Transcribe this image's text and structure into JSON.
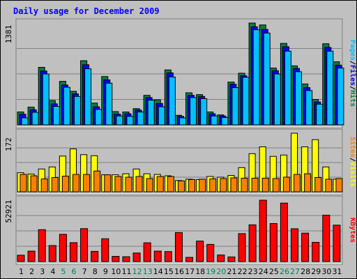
{
  "title": "Daily usage for December 2009",
  "colors": {
    "background": "#c0c0c0",
    "title": "#0000ff",
    "hits": "#008040",
    "files": "#0000ff",
    "pages": "#00c0ff",
    "visits": "#ffff00",
    "sites": "#ff8000",
    "kbytes": "#ff0000",
    "weekend_label": "#00805c",
    "weekday_label": "#000000"
  },
  "chart_data": [
    {
      "type": "bar",
      "name": "hits-files-pages",
      "y_max_label": "1381",
      "ylim": [
        0,
        1381
      ],
      "legend": [
        "Pages",
        "/",
        "Files",
        "/",
        "Hits"
      ],
      "categories": [
        "1",
        "2",
        "3",
        "4",
        "5",
        "6",
        "7",
        "8",
        "9",
        "10",
        "11",
        "12",
        "13",
        "14",
        "15",
        "16",
        "17",
        "18",
        "19",
        "20",
        "21",
        "22",
        "23",
        "24",
        "25",
        "26",
        "27",
        "28",
        "29",
        "30",
        "31"
      ],
      "weekend": [
        false,
        false,
        false,
        false,
        true,
        true,
        false,
        false,
        false,
        false,
        false,
        true,
        true,
        false,
        false,
        false,
        false,
        false,
        true,
        true,
        false,
        false,
        false,
        false,
        false,
        true,
        true,
        false,
        false,
        false,
        false
      ],
      "series": [
        {
          "name": "Hits",
          "values": [
            175,
            240,
            780,
            330,
            590,
            455,
            870,
            295,
            655,
            180,
            175,
            220,
            400,
            340,
            745,
            130,
            435,
            410,
            175,
            135,
            580,
            700,
            1381,
            1355,
            770,
            1105,
            800,
            555,
            345,
            1100,
            855
          ]
        },
        {
          "name": "Files",
          "values": [
            145,
            205,
            730,
            285,
            540,
            420,
            815,
            245,
            610,
            145,
            150,
            200,
            370,
            290,
            705,
            115,
            400,
            385,
            150,
            120,
            550,
            665,
            1330,
            1295,
            735,
            1060,
            765,
            505,
            310,
            1050,
            810
          ]
        },
        {
          "name": "Pages",
          "values": [
            95,
            170,
            690,
            250,
            510,
            385,
            760,
            210,
            565,
            120,
            115,
            175,
            335,
            245,
            650,
            95,
            370,
            355,
            120,
            100,
            505,
            645,
            1290,
            1245,
            690,
            1000,
            720,
            465,
            280,
            1000,
            770
          ]
        }
      ]
    },
    {
      "type": "bar",
      "name": "visits-sites",
      "y_max_label": "172",
      "ylim": [
        0,
        172
      ],
      "legend": [
        "Sites",
        "/",
        "Visits"
      ],
      "categories": [
        "1",
        "2",
        "3",
        "4",
        "5",
        "6",
        "7",
        "8",
        "9",
        "10",
        "11",
        "12",
        "13",
        "14",
        "15",
        "16",
        "17",
        "18",
        "19",
        "20",
        "21",
        "22",
        "23",
        "24",
        "25",
        "26",
        "27",
        "28",
        "29",
        "30",
        "31"
      ],
      "series": [
        {
          "name": "Visits",
          "values": [
            56,
            52,
            67,
            73,
            105,
            126,
            109,
            106,
            50,
            50,
            53,
            67,
            53,
            51,
            47,
            33,
            37,
            36,
            45,
            43,
            48,
            71,
            112,
            132,
            104,
            108,
            172,
            132,
            153,
            73,
            37
          ]
        },
        {
          "name": "Sites",
          "values": [
            51,
            47,
            38,
            42,
            46,
            51,
            51,
            61,
            50,
            45,
            43,
            45,
            39,
            45,
            45,
            32,
            36,
            37,
            38,
            39,
            41,
            40,
            40,
            40,
            39,
            43,
            51,
            53,
            42,
            37,
            39
          ]
        }
      ]
    },
    {
      "type": "bar",
      "name": "kbytes",
      "y_max_label": "52921",
      "ylim": [
        0,
        52921
      ],
      "legend": [
        "KBytes"
      ],
      "categories": [
        "1",
        "2",
        "3",
        "4",
        "5",
        "6",
        "7",
        "8",
        "9",
        "10",
        "11",
        "12",
        "13",
        "14",
        "15",
        "16",
        "17",
        "18",
        "19",
        "20",
        "21",
        "22",
        "23",
        "24",
        "25",
        "26",
        "27",
        "28",
        "29",
        "30",
        "31"
      ],
      "series": [
        {
          "name": "KBytes",
          "values": [
            5500,
            9000,
            27500,
            13800,
            23500,
            16300,
            28400,
            8800,
            19700,
            4500,
            4200,
            7400,
            16200,
            9000,
            8600,
            25000,
            3600,
            17700,
            14800,
            5700,
            4000,
            24100,
            31700,
            52921,
            32800,
            50400,
            28300,
            24500,
            16600,
            40000,
            31400
          ]
        }
      ]
    }
  ]
}
